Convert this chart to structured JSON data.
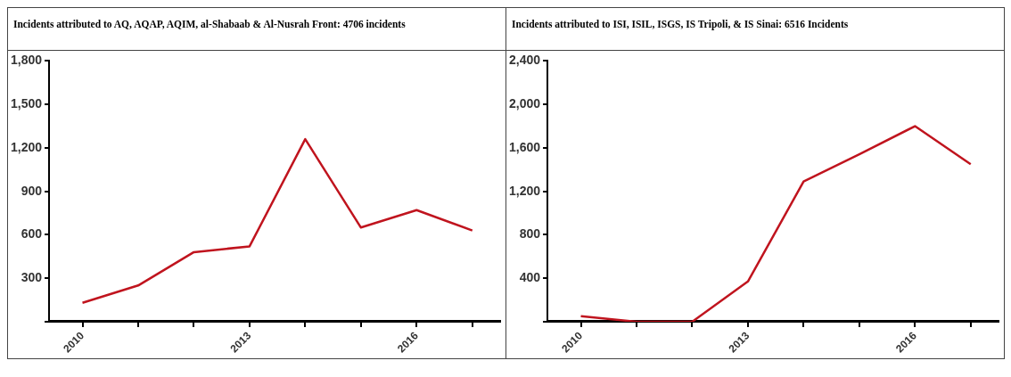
{
  "chart_data": [
    {
      "type": "line",
      "title": "Incidents attributed to AQ, AQAP, AQIM, al-Shabaab  & Al-Nusrah Front: 4706 incidents",
      "x": [
        2010,
        2011,
        2012,
        2013,
        2014,
        2015,
        2016,
        2017
      ],
      "series": [
        {
          "color": "#c0141e",
          "values": [
            130,
            250,
            480,
            520,
            1260,
            650,
            770,
            630
          ]
        }
      ],
      "xlim": [
        2009.4,
        2017.5
      ],
      "xticks": [
        2010,
        {
          "value": 2011,
          "label": null
        },
        {
          "value": 2012,
          "label": null
        },
        2013,
        {
          "value": 2014,
          "label": null
        },
        {
          "value": 2015,
          "label": null
        },
        2016,
        {
          "value": 2017,
          "label": null
        }
      ],
      "ylim": [
        0,
        1800
      ],
      "yticks": [
        {
          "value": 0,
          "label": null
        },
        300,
        600,
        900,
        {
          "value": 1200,
          "label": "1,200"
        },
        {
          "value": 1500,
          "label": "1,500"
        },
        {
          "value": 1800,
          "label": "1,800"
        }
      ],
      "grid": false
    },
    {
      "type": "line",
      "title": "Incidents attributed to ISI, ISIL, ISGS, IS Tripoli, & IS Sinai: 6516 Incidents",
      "x": [
        2010,
        2011,
        2012,
        2013,
        2014,
        2015,
        2016,
        2017
      ],
      "series": [
        {
          "color": "#c0141e",
          "values": [
            50,
            0,
            0,
            370,
            1290,
            1540,
            1800,
            1450
          ]
        }
      ],
      "xlim": [
        2009.4,
        2017.5
      ],
      "xticks": [
        2010,
        {
          "value": 2011,
          "label": null
        },
        {
          "value": 2012,
          "label": null
        },
        2013,
        {
          "value": 2014,
          "label": null
        },
        {
          "value": 2015,
          "label": null
        },
        2016,
        {
          "value": 2017,
          "label": null
        }
      ],
      "ylim": [
        0,
        2400
      ],
      "yticks": [
        {
          "value": 0,
          "label": null
        },
        400,
        800,
        {
          "value": 1200,
          "label": "1,200"
        },
        {
          "value": 1600,
          "label": "1,600"
        },
        {
          "value": 2000,
          "label": "2,000"
        },
        {
          "value": 2400,
          "label": "2,400"
        }
      ],
      "grid": false
    }
  ]
}
